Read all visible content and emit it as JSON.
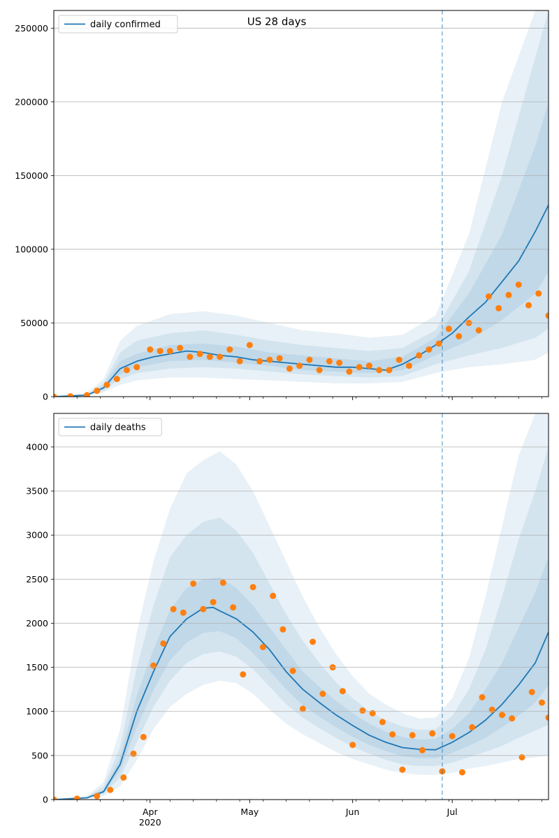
{
  "figure_title": "US 28 days",
  "colors": {
    "model_line": "#1f77b4",
    "observed_points": "#ff7f0e",
    "band": "#1f77b4",
    "grid": "#b0b0b0",
    "forecast_divider": "#1f77b4"
  },
  "x_axis": {
    "tick_labels": [
      {
        "date": "2020-04-01",
        "label": "Apr",
        "sublabel": "2020"
      },
      {
        "date": "2020-05-01",
        "label": "May",
        "sublabel": ""
      },
      {
        "date": "2020-06-01",
        "label": "Jun",
        "sublabel": ""
      },
      {
        "date": "2020-07-01",
        "label": "Jul",
        "sublabel": ""
      }
    ]
  },
  "chart_data": [
    {
      "type": "line",
      "title": "US 28 days",
      "legend": [
        "daily confirmed"
      ],
      "legend_position": "top-left",
      "grid": "horizontal",
      "xlim": [
        "2020-03-03",
        "2020-07-30"
      ],
      "ylim": [
        0,
        262000
      ],
      "yticks": [
        0,
        50000,
        100000,
        150000,
        200000,
        250000
      ],
      "forecast_start": "2020-06-28",
      "series": [
        {
          "name": "daily confirmed",
          "style": "line",
          "x": [
            "2020-03-03",
            "2020-03-13",
            "2020-03-18",
            "2020-03-23",
            "2020-03-28",
            "2020-04-02",
            "2020-04-07",
            "2020-04-12",
            "2020-04-17",
            "2020-04-22",
            "2020-04-27",
            "2020-05-02",
            "2020-05-07",
            "2020-05-12",
            "2020-05-17",
            "2020-05-22",
            "2020-05-27",
            "2020-06-01",
            "2020-06-06",
            "2020-06-11",
            "2020-06-16",
            "2020-06-21",
            "2020-06-26",
            "2020-07-01",
            "2020-07-06",
            "2020-07-11",
            "2020-07-16",
            "2020-07-21",
            "2020-07-26",
            "2020-07-30"
          ],
          "y": [
            0,
            1000,
            6000,
            19000,
            24000,
            27000,
            29000,
            31000,
            30000,
            28000,
            27000,
            25000,
            24000,
            23000,
            22000,
            21000,
            20000,
            20000,
            19000,
            18000,
            22000,
            28000,
            35000,
            43000,
            54000,
            64000,
            78000,
            92000,
            112000,
            130000
          ]
        },
        {
          "name": "",
          "style": "points",
          "x": [
            "2020-03-03",
            "2020-03-08",
            "2020-03-13",
            "2020-03-16",
            "2020-03-19",
            "2020-03-22",
            "2020-03-25",
            "2020-03-28",
            "2020-04-01",
            "2020-04-04",
            "2020-04-07",
            "2020-04-10",
            "2020-04-13",
            "2020-04-16",
            "2020-04-19",
            "2020-04-22",
            "2020-04-25",
            "2020-04-28",
            "2020-05-01",
            "2020-05-04",
            "2020-05-07",
            "2020-05-10",
            "2020-05-13",
            "2020-05-16",
            "2020-05-19",
            "2020-05-22",
            "2020-05-25",
            "2020-05-28",
            "2020-05-31",
            "2020-06-03",
            "2020-06-06",
            "2020-06-09",
            "2020-06-12",
            "2020-06-15",
            "2020-06-18",
            "2020-06-21",
            "2020-06-24",
            "2020-06-27",
            "2020-06-30",
            "2020-07-03",
            "2020-07-06",
            "2020-07-09",
            "2020-07-12",
            "2020-07-15",
            "2020-07-18",
            "2020-07-21",
            "2020-07-24",
            "2020-07-27",
            "2020-07-30"
          ],
          "y": [
            0,
            200,
            1000,
            4000,
            8000,
            12000,
            18000,
            20000,
            32000,
            31000,
            31000,
            33000,
            27000,
            29000,
            27000,
            27000,
            32000,
            24000,
            35000,
            24000,
            25000,
            26000,
            19000,
            21000,
            25000,
            18000,
            24000,
            23000,
            17000,
            20000,
            21000,
            18000,
            18000,
            25000,
            21000,
            28000,
            32000,
            36000,
            46000,
            41000,
            50000,
            45000,
            68000,
            60000,
            69000,
            76000,
            62000,
            70000,
            55000
          ]
        }
      ],
      "bands": [
        {
          "x": [
            "2020-03-03",
            "2020-03-13",
            "2020-03-18",
            "2020-03-23",
            "2020-03-28",
            "2020-04-07",
            "2020-04-17",
            "2020-04-27",
            "2020-05-07",
            "2020-05-17",
            "2020-05-27",
            "2020-06-06",
            "2020-06-16",
            "2020-06-26",
            "2020-07-06",
            "2020-07-16",
            "2020-07-26",
            "2020-07-30"
          ],
          "lower": [
            0,
            500,
            3000,
            8000,
            11000,
            13000,
            13000,
            12000,
            11000,
            10000,
            9000,
            9000,
            10000,
            16000,
            20000,
            22000,
            25000,
            30000
          ],
          "upper": [
            0,
            2500,
            12000,
            38000,
            48000,
            56000,
            58000,
            55000,
            50000,
            45000,
            43000,
            40000,
            42000,
            55000,
            110000,
            200000,
            262000,
            262000
          ]
        },
        {
          "x": [
            "2020-03-03",
            "2020-03-13",
            "2020-03-18",
            "2020-03-23",
            "2020-03-28",
            "2020-04-07",
            "2020-04-17",
            "2020-04-27",
            "2020-05-07",
            "2020-05-17",
            "2020-05-27",
            "2020-06-06",
            "2020-06-16",
            "2020-06-26",
            "2020-07-06",
            "2020-07-16",
            "2020-07-26",
            "2020-07-30"
          ],
          "lower": [
            0,
            700,
            4000,
            12000,
            16000,
            19000,
            20000,
            19000,
            17000,
            15000,
            14000,
            13000,
            14000,
            22000,
            28000,
            33000,
            40000,
            46000
          ],
          "upper": [
            0,
            1800,
            9000,
            30000,
            38000,
            43000,
            45000,
            42000,
            38000,
            35000,
            33000,
            31000,
            33000,
            45000,
            85000,
            150000,
            230000,
            262000
          ]
        },
        {
          "x": [
            "2020-03-03",
            "2020-03-13",
            "2020-03-18",
            "2020-03-23",
            "2020-03-28",
            "2020-04-07",
            "2020-04-17",
            "2020-04-27",
            "2020-05-07",
            "2020-05-17",
            "2020-05-27",
            "2020-06-06",
            "2020-06-16",
            "2020-06-26",
            "2020-07-06",
            "2020-07-16",
            "2020-07-26",
            "2020-07-30"
          ],
          "lower": [
            0,
            850,
            5000,
            15000,
            20000,
            24000,
            25000,
            23000,
            21000,
            18000,
            17000,
            16000,
            18000,
            28000,
            38000,
            52000,
            70000,
            85000
          ],
          "upper": [
            0,
            1300,
            7500,
            24000,
            29000,
            35000,
            36000,
            34000,
            30000,
            28000,
            26000,
            24000,
            27000,
            40000,
            70000,
            110000,
            170000,
            200000
          ]
        }
      ]
    },
    {
      "type": "line",
      "title": "",
      "legend": [
        "daily deaths"
      ],
      "legend_position": "top-left",
      "grid": "horizontal",
      "xlim": [
        "2020-03-03",
        "2020-07-30"
      ],
      "ylim": [
        0,
        4380
      ],
      "yticks": [
        0,
        500,
        1000,
        1500,
        2000,
        2500,
        3000,
        3500,
        4000
      ],
      "forecast_start": "2020-06-28",
      "series": [
        {
          "name": "daily deaths",
          "style": "line",
          "x": [
            "2020-03-03",
            "2020-03-13",
            "2020-03-18",
            "2020-03-23",
            "2020-03-28",
            "2020-04-02",
            "2020-04-07",
            "2020-04-12",
            "2020-04-17",
            "2020-04-20",
            "2020-04-22",
            "2020-04-27",
            "2020-05-02",
            "2020-05-07",
            "2020-05-12",
            "2020-05-17",
            "2020-05-22",
            "2020-05-27",
            "2020-06-01",
            "2020-06-06",
            "2020-06-11",
            "2020-06-16",
            "2020-06-21",
            "2020-06-26",
            "2020-07-01",
            "2020-07-06",
            "2020-07-11",
            "2020-07-16",
            "2020-07-21",
            "2020-07-26",
            "2020-07-30"
          ],
          "y": [
            0,
            20,
            90,
            400,
            1000,
            1450,
            1850,
            2050,
            2170,
            2180,
            2140,
            2050,
            1900,
            1700,
            1450,
            1250,
            1100,
            960,
            840,
            730,
            650,
            590,
            570,
            565,
            650,
            760,
            900,
            1080,
            1300,
            1550,
            1900
          ]
        },
        {
          "name": "",
          "style": "points",
          "x": [
            "2020-03-03",
            "2020-03-10",
            "2020-03-16",
            "2020-03-20",
            "2020-03-24",
            "2020-03-27",
            "2020-03-30",
            "2020-04-02",
            "2020-04-05",
            "2020-04-08",
            "2020-04-11",
            "2020-04-14",
            "2020-04-17",
            "2020-04-20",
            "2020-04-23",
            "2020-04-26",
            "2020-04-29",
            "2020-05-02",
            "2020-05-05",
            "2020-05-08",
            "2020-05-11",
            "2020-05-14",
            "2020-05-17",
            "2020-05-20",
            "2020-05-23",
            "2020-05-26",
            "2020-05-29",
            "2020-06-01",
            "2020-06-04",
            "2020-06-07",
            "2020-06-10",
            "2020-06-13",
            "2020-06-16",
            "2020-06-19",
            "2020-06-22",
            "2020-06-25",
            "2020-06-28",
            "2020-07-01",
            "2020-07-04",
            "2020-07-07",
            "2020-07-10",
            "2020-07-13",
            "2020-07-16",
            "2020-07-19",
            "2020-07-22",
            "2020-07-25",
            "2020-07-28",
            "2020-07-30"
          ],
          "y": [
            0,
            10,
            40,
            110,
            250,
            520,
            710,
            1520,
            1770,
            2160,
            2120,
            2450,
            2160,
            2240,
            2460,
            2180,
            1420,
            2410,
            1730,
            2310,
            1930,
            1460,
            1030,
            1790,
            1200,
            1500,
            1230,
            620,
            1010,
            980,
            880,
            740,
            340,
            730,
            560,
            750,
            320,
            720,
            310,
            820,
            1160,
            1020,
            960,
            920,
            480,
            1220,
            1100,
            930
          ]
        }
      ],
      "bands": [
        {
          "x": [
            "2020-03-03",
            "2020-03-13",
            "2020-03-18",
            "2020-03-23",
            "2020-03-28",
            "2020-04-02",
            "2020-04-07",
            "2020-04-12",
            "2020-04-17",
            "2020-04-22",
            "2020-04-27",
            "2020-05-02",
            "2020-05-07",
            "2020-05-12",
            "2020-05-17",
            "2020-05-22",
            "2020-05-27",
            "2020-06-01",
            "2020-06-06",
            "2020-06-11",
            "2020-06-16",
            "2020-06-21",
            "2020-06-26",
            "2020-07-01",
            "2020-07-06",
            "2020-07-11",
            "2020-07-16",
            "2020-07-21",
            "2020-07-26",
            "2020-07-30"
          ],
          "lower": [
            0,
            10,
            40,
            150,
            450,
            800,
            1050,
            1200,
            1300,
            1350,
            1320,
            1200,
            1020,
            860,
            740,
            640,
            540,
            460,
            400,
            340,
            300,
            280,
            280,
            300,
            350,
            380,
            420,
            460,
            480,
            500
          ],
          "upper": [
            0,
            40,
            200,
            800,
            1900,
            2700,
            3300,
            3700,
            3850,
            3950,
            3800,
            3500,
            3100,
            2700,
            2300,
            1950,
            1650,
            1400,
            1200,
            1080,
            980,
            920,
            930,
            1150,
            1600,
            2300,
            3100,
            3900,
            4380,
            4380
          ]
        },
        {
          "x": [
            "2020-03-03",
            "2020-03-13",
            "2020-03-18",
            "2020-03-23",
            "2020-03-28",
            "2020-04-02",
            "2020-04-07",
            "2020-04-12",
            "2020-04-17",
            "2020-04-22",
            "2020-04-27",
            "2020-05-02",
            "2020-05-07",
            "2020-05-12",
            "2020-05-17",
            "2020-05-22",
            "2020-05-27",
            "2020-06-01",
            "2020-06-06",
            "2020-06-11",
            "2020-06-16",
            "2020-06-21",
            "2020-06-26",
            "2020-07-01",
            "2020-07-06",
            "2020-07-11",
            "2020-07-16",
            "2020-07-21",
            "2020-07-26",
            "2020-07-30"
          ],
          "lower": [
            0,
            14,
            60,
            250,
            650,
            1050,
            1350,
            1550,
            1650,
            1680,
            1620,
            1480,
            1280,
            1080,
            930,
            810,
            700,
            600,
            520,
            450,
            400,
            380,
            380,
            420,
            480,
            540,
            610,
            700,
            780,
            850
          ],
          "upper": [
            0,
            30,
            150,
            600,
            1500,
            2200,
            2750,
            3000,
            3150,
            3200,
            3050,
            2800,
            2450,
            2100,
            1800,
            1550,
            1330,
            1150,
            1000,
            900,
            830,
            790,
            800,
            950,
            1250,
            1700,
            2300,
            2950,
            3500,
            4000
          ]
        },
        {
          "x": [
            "2020-03-03",
            "2020-03-13",
            "2020-03-18",
            "2020-03-23",
            "2020-03-28",
            "2020-04-02",
            "2020-04-07",
            "2020-04-12",
            "2020-04-17",
            "2020-04-22",
            "2020-04-27",
            "2020-05-02",
            "2020-05-07",
            "2020-05-12",
            "2020-05-17",
            "2020-05-22",
            "2020-05-27",
            "2020-06-01",
            "2020-06-06",
            "2020-06-11",
            "2020-06-16",
            "2020-06-21",
            "2020-06-26",
            "2020-07-01",
            "2020-07-06",
            "2020-07-11",
            "2020-07-16",
            "2020-07-21",
            "2020-07-26",
            "2020-07-30"
          ],
          "lower": [
            0,
            17,
            75,
            330,
            820,
            1240,
            1580,
            1780,
            1890,
            1910,
            1830,
            1660,
            1460,
            1250,
            1070,
            940,
            820,
            710,
            620,
            550,
            490,
            470,
            470,
            530,
            610,
            700,
            820,
            950,
            1100,
            1300
          ],
          "upper": [
            0,
            24,
            110,
            480,
            1180,
            1700,
            2150,
            2400,
            2500,
            2520,
            2400,
            2200,
            1950,
            1700,
            1450,
            1280,
            1120,
            980,
            860,
            770,
            710,
            680,
            690,
            800,
            980,
            1250,
            1550,
            1950,
            2350,
            2750
          ]
        }
      ]
    }
  ]
}
